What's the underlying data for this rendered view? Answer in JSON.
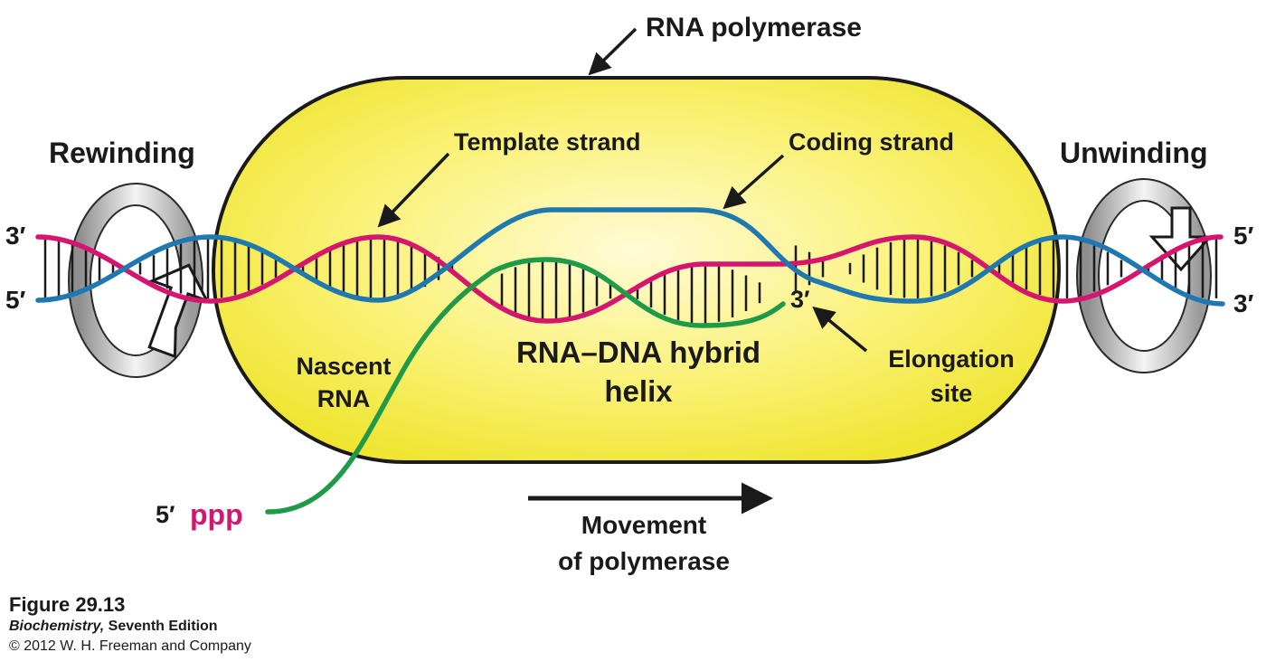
{
  "labels": {
    "rna_polymerase": "RNA polymerase",
    "rewinding": "Rewinding",
    "unwinding": "Unwinding",
    "template_strand": "Template strand",
    "coding_strand": "Coding strand",
    "nascent_rna_line1": "Nascent",
    "nascent_rna_line2": "RNA",
    "hybrid_line1": "RNA–DNA hybrid",
    "hybrid_line2": "helix",
    "elongation_line1": "Elongation",
    "elongation_line2": "site",
    "movement_line1": "Movement",
    "movement_line2": "of polymerase",
    "left_top_end": "3′",
    "left_bottom_end": "5′",
    "right_top_end": "5′",
    "right_bottom_end": "3′",
    "rna_3_end": "3′",
    "rna_5_end": "5′",
    "ppp": "ppp"
  },
  "caption": {
    "figure": "Figure 29.13",
    "book_title": "Biochemistry,",
    "book_edition": "Seventh Edition",
    "copyright": "© 2012 W. H. Freeman and Company"
  },
  "colors": {
    "template_strand": "#d6166e",
    "coding_strand": "#1f78b0",
    "rna": "#1e9a48",
    "polymerase_fill": "#f5ef3a",
    "polymerase_center": "#fffbd2",
    "arrow_gray": "#bdbdbd"
  }
}
